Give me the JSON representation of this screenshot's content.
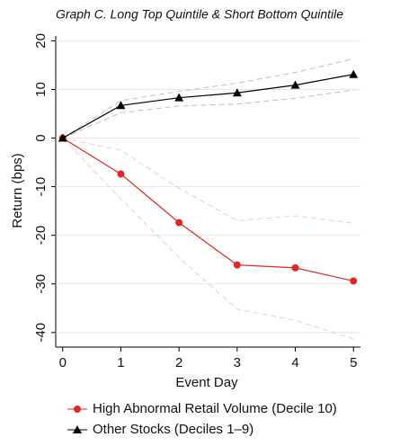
{
  "chart_data": {
    "type": "line",
    "title": "Graph C. Long Top Quintile & Short Bottom Quintile",
    "x_label": "Event Day",
    "y_label": "Return (bps)",
    "x": [
      0,
      1,
      2,
      3,
      4,
      5
    ],
    "xlim": [
      -0.12,
      5.12
    ],
    "xticks": [
      0,
      1,
      2,
      3,
      4,
      5
    ],
    "ylim": [
      -43,
      21
    ],
    "yticks": [
      20,
      10,
      0,
      -10,
      -20,
      -30,
      -40
    ],
    "grid": true,
    "legend": "bottom",
    "series": [
      {
        "name": "High Abnormal Retail Volume (Decile 10)",
        "color": "#e0262a",
        "marker": "circle",
        "values": [
          0,
          -7.4,
          -17.4,
          -26.1,
          -26.7,
          -29.4
        ],
        "ci_upper": [
          0,
          -2.5,
          -10.3,
          -17,
          -16,
          -17.5
        ],
        "ci_lower": [
          0,
          -12.5,
          -24.6,
          -35.2,
          -37.5,
          -41.3
        ]
      },
      {
        "name": "Other Stocks (Deciles 1–9)",
        "color": "#000000",
        "marker": "triangle",
        "values": [
          0,
          6.7,
          8.3,
          9.3,
          10.9,
          13.1
        ],
        "ci_upper": [
          0,
          7.7,
          9.6,
          11.3,
          13.5,
          16.3
        ],
        "ci_lower": [
          0,
          5.2,
          6.6,
          7.0,
          8.2,
          9.9
        ]
      }
    ]
  }
}
